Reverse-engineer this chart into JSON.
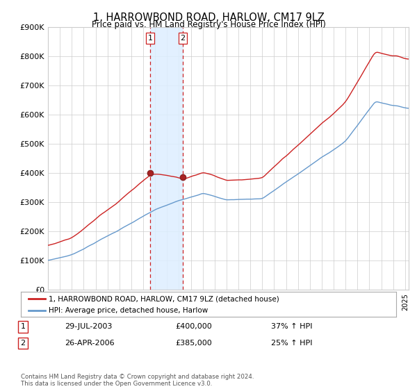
{
  "title": "1, HARROWBOND ROAD, HARLOW, CM17 9LZ",
  "subtitle": "Price paid vs. HM Land Registry's House Price Index (HPI)",
  "legend_line1": "1, HARROWBOND ROAD, HARLOW, CM17 9LZ (detached house)",
  "legend_line2": "HPI: Average price, detached house, Harlow",
  "transaction1_label": "1",
  "transaction1_date": "29-JUL-2003",
  "transaction1_price": "£400,000",
  "transaction1_hpi": "37% ↑ HPI",
  "transaction1_year": 2003.58,
  "transaction1_value": 400000,
  "transaction2_label": "2",
  "transaction2_date": "26-APR-2006",
  "transaction2_price": "£385,000",
  "transaction2_hpi": "25% ↑ HPI",
  "transaction2_year": 2006.32,
  "transaction2_value": 385000,
  "line_color_red": "#cc2222",
  "line_color_blue": "#6699cc",
  "background_color": "#ffffff",
  "grid_color": "#cccccc",
  "shade_color": "#ddeeff",
  "footnote": "Contains HM Land Registry data © Crown copyright and database right 2024.\nThis data is licensed under the Open Government Licence v3.0.",
  "ylim": [
    0,
    900000
  ],
  "yticks": [
    0,
    100000,
    200000,
    300000,
    400000,
    500000,
    600000,
    700000,
    800000,
    900000
  ],
  "xlim_start": 1995,
  "xlim_end": 2025.3
}
